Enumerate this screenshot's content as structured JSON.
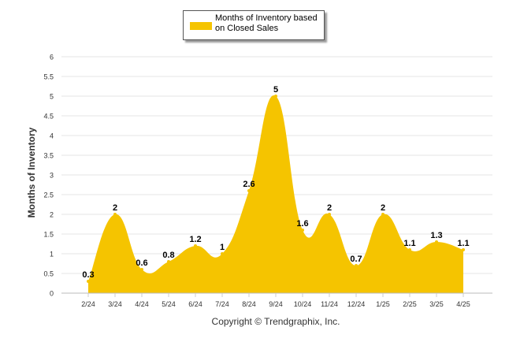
{
  "colors": {
    "area": "#F5C400",
    "grid": "#e6e6e6",
    "axis": "#999999"
  },
  "legend": {
    "label": "Months of Inventory based on Closed Sales"
  },
  "footer": {
    "copyright": "Copyright © Trendgraphix, Inc."
  },
  "chart_data": {
    "type": "area",
    "categories": [
      "2/24",
      "3/24",
      "4/24",
      "5/24",
      "6/24",
      "7/24",
      "8/24",
      "9/24",
      "10/24",
      "11/24",
      "12/24",
      "1/25",
      "2/25",
      "3/25",
      "4/25"
    ],
    "series": [
      {
        "name": "Months of Inventory based on Closed Sales",
        "values": [
          0.3,
          2,
          0.6,
          0.8,
          1.2,
          1,
          2.6,
          5,
          1.6,
          2,
          0.7,
          2,
          1.1,
          1.3,
          1.1
        ]
      }
    ],
    "ylabel": "Months of Inventory",
    "xlabel": "",
    "ylim": [
      0,
      6
    ],
    "yticks": [
      "0",
      "0.5",
      "1",
      "1.5",
      "2",
      "2.5",
      "3",
      "3.5",
      "4",
      "4.5",
      "5",
      "5.5",
      "6"
    ],
    "grid": true,
    "legend_position": "top-center"
  }
}
